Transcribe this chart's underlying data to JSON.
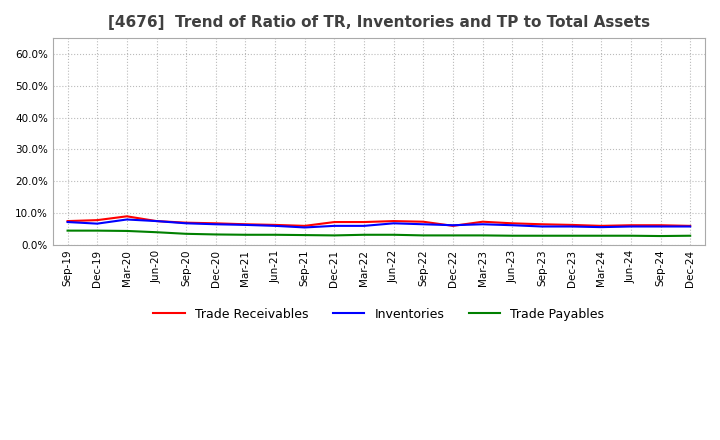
{
  "title": "[4676]  Trend of Ratio of TR, Inventories and TP to Total Assets",
  "x_labels": [
    "Sep-19",
    "Dec-19",
    "Mar-20",
    "Jun-20",
    "Sep-20",
    "Dec-20",
    "Mar-21",
    "Jun-21",
    "Sep-21",
    "Dec-21",
    "Mar-22",
    "Jun-22",
    "Sep-22",
    "Dec-22",
    "Mar-23",
    "Jun-23",
    "Sep-23",
    "Dec-23",
    "Mar-24",
    "Jun-24",
    "Sep-24",
    "Dec-24"
  ],
  "trade_receivables": [
    0.075,
    0.078,
    0.09,
    0.075,
    0.07,
    0.068,
    0.065,
    0.063,
    0.06,
    0.072,
    0.072,
    0.075,
    0.073,
    0.06,
    0.073,
    0.068,
    0.065,
    0.063,
    0.06,
    0.062,
    0.062,
    0.06
  ],
  "inventories": [
    0.072,
    0.067,
    0.08,
    0.075,
    0.068,
    0.065,
    0.063,
    0.06,
    0.055,
    0.06,
    0.06,
    0.068,
    0.065,
    0.062,
    0.065,
    0.062,
    0.058,
    0.058,
    0.056,
    0.058,
    0.058,
    0.058
  ],
  "trade_payables": [
    0.045,
    0.045,
    0.044,
    0.04,
    0.035,
    0.033,
    0.032,
    0.032,
    0.031,
    0.03,
    0.032,
    0.032,
    0.03,
    0.03,
    0.03,
    0.029,
    0.029,
    0.029,
    0.029,
    0.029,
    0.028,
    0.029
  ],
  "tr_color": "#FF0000",
  "inv_color": "#0000FF",
  "tp_color": "#008000",
  "ylim": [
    0.0,
    0.65
  ],
  "yticks": [
    0.0,
    0.1,
    0.2,
    0.3,
    0.4,
    0.5,
    0.6
  ],
  "background_color": "#FFFFFF",
  "plot_bg_color": "#FFFFFF",
  "grid_color": "#AAAAAA",
  "title_fontsize": 11,
  "title_color": "#404040",
  "axis_label_fontsize": 7.5,
  "legend_items": [
    "Trade Receivables",
    "Inventories",
    "Trade Payables"
  ],
  "legend_fontsize": 9
}
